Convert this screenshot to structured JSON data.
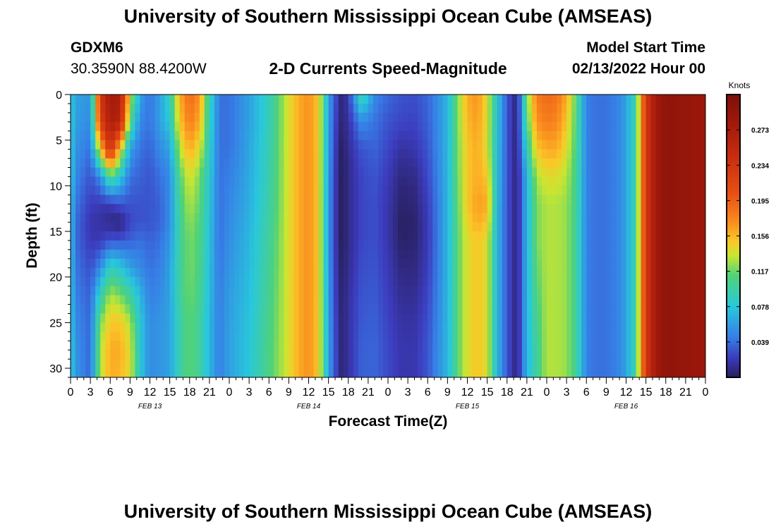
{
  "header": {
    "title": "University of Southern Mississippi Ocean Cube (AMSEAS)",
    "station_id": "GDXM6",
    "station_coords": "30.3590N  88.4200W",
    "plot_title": "2-D Currents Speed-Magnitude",
    "model_start_label": "Model Start Time",
    "model_start_value": "02/13/2022 Hour 00"
  },
  "footer": {
    "repeated_title": "University of Southern Mississippi Ocean Cube (AMSEAS)"
  },
  "chart_data": {
    "type": "heatmap",
    "title": "2-D Currents Speed-Magnitude",
    "xlabel": "Forecast Time(Z)",
    "ylabel": "Depth (ft)",
    "x_hours_range": [
      0,
      96
    ],
    "x_tick_step_hours": 3,
    "x_tick_labels": [
      "0",
      "3",
      "6",
      "9",
      "12",
      "15",
      "18",
      "21",
      "0",
      "3",
      "6",
      "9",
      "12",
      "15",
      "18",
      "21",
      "0",
      "3",
      "6",
      "9",
      "12",
      "15",
      "18",
      "21",
      "0",
      "3",
      "6",
      "9",
      "12",
      "15",
      "18",
      "21",
      "0"
    ],
    "date_labels": [
      {
        "text": "FEB 13",
        "hour": 12
      },
      {
        "text": "FEB 14",
        "hour": 36
      },
      {
        "text": "FEB 15",
        "hour": 60
      },
      {
        "text": "FEB 16",
        "hour": 84
      }
    ],
    "y_range_ft": [
      0,
      31
    ],
    "y_ticks": [
      0,
      5,
      10,
      15,
      20,
      25,
      30
    ],
    "colorbar": {
      "label": "Knots",
      "range": [
        0,
        0.312
      ],
      "tick_values": [
        0.039,
        0.078,
        0.117,
        0.156,
        0.195,
        0.234,
        0.273
      ],
      "tick_labels": [
        "0.039",
        "0.078",
        "0.117",
        "0.156",
        "0.195",
        "0.234",
        "0.273"
      ]
    },
    "profile_hours": [
      0,
      1,
      3,
      4.5,
      6,
      7.5,
      9,
      10.5,
      12,
      13.5,
      15,
      16.5,
      18,
      19.5,
      21,
      22.5,
      24,
      27,
      30,
      33,
      34.5,
      36,
      37.5,
      39,
      40,
      41,
      42,
      44,
      46,
      48,
      50,
      52,
      54,
      55.5,
      57,
      58.5,
      60,
      61.5,
      63,
      64.5,
      66,
      67.5,
      69,
      70.5,
      72,
      73.5,
      75,
      76.5,
      78,
      79.5,
      81,
      82.5,
      84,
      85.5,
      87,
      88.5,
      90,
      93,
      96
    ],
    "profile_depths_ft": [
      0,
      3,
      6,
      9,
      12,
      14,
      16,
      19,
      22,
      25,
      28,
      31
    ],
    "profile_speeds_knots": [
      [
        0.078,
        0.078,
        0.078,
        0.078,
        0.07,
        0.07,
        0.07,
        0.072,
        0.074,
        0.076,
        0.078,
        0.078
      ],
      [
        0.06,
        0.058,
        0.052,
        0.046,
        0.04,
        0.036,
        0.036,
        0.04,
        0.044,
        0.048,
        0.052,
        0.054
      ],
      [
        0.055,
        0.05,
        0.04,
        0.03,
        0.022,
        0.018,
        0.02,
        0.028,
        0.034,
        0.036,
        0.036,
        0.036
      ],
      [
        0.23,
        0.22,
        0.15,
        0.05,
        0.02,
        0.015,
        0.02,
        0.05,
        0.09,
        0.12,
        0.13,
        0.13
      ],
      [
        0.28,
        0.27,
        0.24,
        0.11,
        0.02,
        0.01,
        0.03,
        0.09,
        0.13,
        0.15,
        0.16,
        0.16
      ],
      [
        0.27,
        0.26,
        0.15,
        0.08,
        0.03,
        0.005,
        0.03,
        0.08,
        0.12,
        0.15,
        0.16,
        0.155
      ],
      [
        0.14,
        0.11,
        0.06,
        0.04,
        0.03,
        0.025,
        0.035,
        0.06,
        0.1,
        0.13,
        0.14,
        0.14
      ],
      [
        0.06,
        0.05,
        0.04,
        0.035,
        0.03,
        0.03,
        0.04,
        0.05,
        0.07,
        0.08,
        0.08,
        0.08
      ],
      [
        0.04,
        0.04,
        0.035,
        0.03,
        0.03,
        0.03,
        0.035,
        0.04,
        0.045,
        0.05,
        0.05,
        0.05
      ],
      [
        0.06,
        0.06,
        0.05,
        0.04,
        0.035,
        0.035,
        0.04,
        0.045,
        0.05,
        0.055,
        0.055,
        0.055
      ],
      [
        0.09,
        0.08,
        0.06,
        0.05,
        0.05,
        0.05,
        0.055,
        0.06,
        0.06,
        0.06,
        0.06,
        0.06
      ],
      [
        0.16,
        0.15,
        0.13,
        0.11,
        0.105,
        0.1,
        0.1,
        0.1,
        0.1,
        0.095,
        0.095,
        0.095
      ],
      [
        0.19,
        0.18,
        0.16,
        0.14,
        0.13,
        0.125,
        0.12,
        0.12,
        0.118,
        0.115,
        0.115,
        0.115
      ],
      [
        0.17,
        0.16,
        0.14,
        0.12,
        0.115,
        0.11,
        0.11,
        0.108,
        0.105,
        0.1,
        0.1,
        0.1
      ],
      [
        0.095,
        0.09,
        0.085,
        0.08,
        0.078,
        0.076,
        0.075,
        0.074,
        0.072,
        0.07,
        0.07,
        0.07
      ],
      [
        0.04,
        0.04,
        0.04,
        0.04,
        0.04,
        0.04,
        0.04,
        0.042,
        0.044,
        0.045,
        0.045,
        0.045
      ],
      [
        0.04,
        0.04,
        0.04,
        0.045,
        0.048,
        0.05,
        0.052,
        0.055,
        0.058,
        0.06,
        0.06,
        0.06
      ],
      [
        0.06,
        0.06,
        0.062,
        0.064,
        0.066,
        0.068,
        0.07,
        0.072,
        0.074,
        0.076,
        0.078,
        0.078
      ],
      [
        0.09,
        0.09,
        0.092,
        0.094,
        0.096,
        0.098,
        0.1,
        0.102,
        0.104,
        0.106,
        0.108,
        0.108
      ],
      [
        0.14,
        0.14,
        0.14,
        0.14,
        0.14,
        0.14,
        0.14,
        0.14,
        0.14,
        0.14,
        0.14,
        0.14
      ],
      [
        0.16,
        0.16,
        0.16,
        0.16,
        0.16,
        0.16,
        0.16,
        0.16,
        0.16,
        0.16,
        0.16,
        0.16
      ],
      [
        0.17,
        0.17,
        0.17,
        0.17,
        0.17,
        0.17,
        0.17,
        0.17,
        0.17,
        0.17,
        0.17,
        0.17
      ],
      [
        0.15,
        0.15,
        0.15,
        0.15,
        0.15,
        0.15,
        0.15,
        0.15,
        0.15,
        0.15,
        0.15,
        0.15
      ],
      [
        0.06,
        0.06,
        0.058,
        0.056,
        0.055,
        0.055,
        0.055,
        0.056,
        0.058,
        0.06,
        0.06,
        0.06
      ],
      [
        0.03,
        0.025,
        0.022,
        0.02,
        0.02,
        0.02,
        0.02,
        0.022,
        0.024,
        0.026,
        0.028,
        0.028
      ],
      [
        0.005,
        0.005,
        0.0,
        0.0,
        0.0,
        0.0,
        0.0,
        0.002,
        0.004,
        0.005,
        0.005,
        0.005
      ],
      [
        0.02,
        0.015,
        0.012,
        0.01,
        0.01,
        0.01,
        0.01,
        0.012,
        0.014,
        0.015,
        0.015,
        0.015
      ],
      [
        0.1,
        0.05,
        0.03,
        0.025,
        0.025,
        0.025,
        0.025,
        0.028,
        0.03,
        0.032,
        0.034,
        0.034
      ],
      [
        0.05,
        0.04,
        0.035,
        0.03,
        0.028,
        0.028,
        0.028,
        0.03,
        0.032,
        0.034,
        0.036,
        0.036
      ],
      [
        0.036,
        0.03,
        0.025,
        0.02,
        0.018,
        0.018,
        0.018,
        0.02,
        0.022,
        0.024,
        0.026,
        0.026
      ],
      [
        0.03,
        0.025,
        0.015,
        0.008,
        0.004,
        0.002,
        0.003,
        0.008,
        0.012,
        0.016,
        0.018,
        0.018
      ],
      [
        0.028,
        0.024,
        0.018,
        0.01,
        0.006,
        0.004,
        0.005,
        0.008,
        0.012,
        0.016,
        0.018,
        0.018
      ],
      [
        0.036,
        0.034,
        0.03,
        0.026,
        0.022,
        0.02,
        0.02,
        0.022,
        0.025,
        0.028,
        0.03,
        0.03
      ],
      [
        0.05,
        0.05,
        0.048,
        0.046,
        0.044,
        0.043,
        0.043,
        0.044,
        0.046,
        0.048,
        0.05,
        0.05
      ],
      [
        0.07,
        0.07,
        0.07,
        0.07,
        0.07,
        0.07,
        0.07,
        0.07,
        0.07,
        0.07,
        0.07,
        0.07
      ],
      [
        0.12,
        0.12,
        0.118,
        0.116,
        0.114,
        0.112,
        0.112,
        0.112,
        0.112,
        0.112,
        0.112,
        0.112
      ],
      [
        0.16,
        0.155,
        0.15,
        0.15,
        0.15,
        0.145,
        0.14,
        0.14,
        0.14,
        0.14,
        0.14,
        0.14
      ],
      [
        0.17,
        0.165,
        0.16,
        0.16,
        0.165,
        0.16,
        0.15,
        0.15,
        0.15,
        0.15,
        0.15,
        0.15
      ],
      [
        0.14,
        0.14,
        0.14,
        0.15,
        0.16,
        0.15,
        0.14,
        0.14,
        0.14,
        0.14,
        0.14,
        0.14
      ],
      [
        0.08,
        0.078,
        0.076,
        0.074,
        0.072,
        0.07,
        0.07,
        0.07,
        0.07,
        0.07,
        0.07,
        0.07
      ],
      [
        0.03,
        0.03,
        0.03,
        0.03,
        0.03,
        0.03,
        0.03,
        0.03,
        0.03,
        0.03,
        0.03,
        0.03
      ],
      [
        0.005,
        0.005,
        0.005,
        0.005,
        0.005,
        0.005,
        0.005,
        0.005,
        0.005,
        0.005,
        0.005,
        0.005
      ],
      [
        0.12,
        0.11,
        0.09,
        0.07,
        0.07,
        0.07,
        0.07,
        0.07,
        0.07,
        0.07,
        0.07,
        0.07
      ],
      [
        0.18,
        0.17,
        0.15,
        0.13,
        0.12,
        0.12,
        0.12,
        0.115,
        0.11,
        0.105,
        0.1,
        0.1
      ],
      [
        0.19,
        0.18,
        0.16,
        0.14,
        0.13,
        0.13,
        0.13,
        0.13,
        0.13,
        0.13,
        0.13,
        0.13
      ],
      [
        0.185,
        0.175,
        0.16,
        0.14,
        0.13,
        0.13,
        0.13,
        0.13,
        0.13,
        0.13,
        0.13,
        0.13
      ],
      [
        0.16,
        0.15,
        0.14,
        0.13,
        0.125,
        0.125,
        0.125,
        0.125,
        0.125,
        0.125,
        0.125,
        0.125
      ],
      [
        0.11,
        0.108,
        0.106,
        0.104,
        0.102,
        0.1,
        0.1,
        0.1,
        0.1,
        0.1,
        0.1,
        0.1
      ],
      [
        0.045,
        0.045,
        0.045,
        0.045,
        0.045,
        0.045,
        0.045,
        0.045,
        0.045,
        0.045,
        0.045,
        0.045
      ],
      [
        0.04,
        0.04,
        0.04,
        0.04,
        0.04,
        0.04,
        0.04,
        0.04,
        0.04,
        0.04,
        0.04,
        0.04
      ],
      [
        0.04,
        0.04,
        0.04,
        0.04,
        0.04,
        0.04,
        0.04,
        0.04,
        0.04,
        0.04,
        0.04,
        0.04
      ],
      [
        0.045,
        0.045,
        0.045,
        0.045,
        0.045,
        0.045,
        0.045,
        0.045,
        0.045,
        0.045,
        0.045,
        0.045
      ],
      [
        0.06,
        0.06,
        0.06,
        0.06,
        0.06,
        0.06,
        0.06,
        0.06,
        0.06,
        0.06,
        0.06,
        0.06
      ],
      [
        0.1,
        0.1,
        0.1,
        0.1,
        0.1,
        0.1,
        0.1,
        0.1,
        0.1,
        0.1,
        0.1,
        0.1
      ],
      [
        0.23,
        0.23,
        0.23,
        0.23,
        0.23,
        0.23,
        0.23,
        0.23,
        0.23,
        0.23,
        0.23,
        0.23
      ],
      [
        0.28,
        0.28,
        0.28,
        0.28,
        0.28,
        0.28,
        0.28,
        0.28,
        0.28,
        0.28,
        0.28,
        0.28
      ],
      [
        0.295,
        0.295,
        0.295,
        0.295,
        0.295,
        0.295,
        0.295,
        0.295,
        0.295,
        0.295,
        0.295,
        0.295
      ],
      [
        0.29,
        0.29,
        0.29,
        0.29,
        0.29,
        0.29,
        0.29,
        0.29,
        0.29,
        0.29,
        0.29,
        0.29
      ],
      [
        0.285,
        0.285,
        0.285,
        0.285,
        0.285,
        0.285,
        0.285,
        0.285,
        0.285,
        0.285,
        0.285,
        0.285
      ]
    ]
  }
}
